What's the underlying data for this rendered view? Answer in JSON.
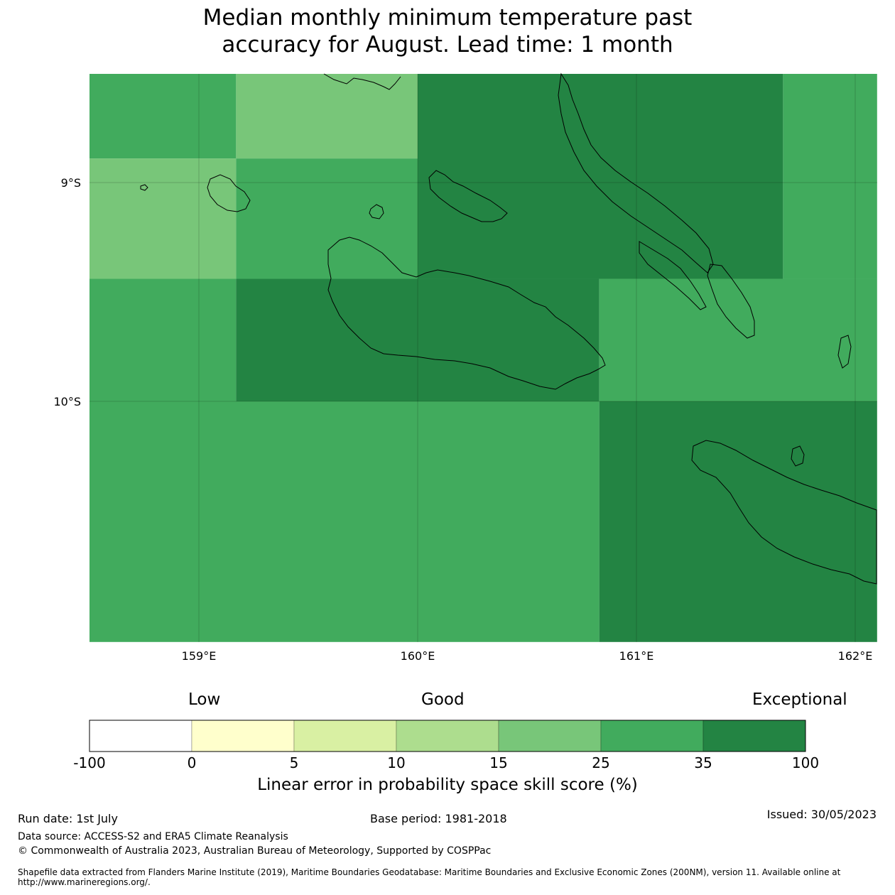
{
  "title_line1": "Median monthly minimum temperature past",
  "title_line2": "accuracy for August. Lead time: 1 month",
  "map": {
    "lon_range": [
      158.5,
      162.1
    ],
    "lat_range": [
      -8.5,
      -11.1
    ],
    "lat_ticks": [
      {
        "value": -9,
        "label": "9°S"
      },
      {
        "value": -10,
        "label": "10°S"
      }
    ],
    "lon_ticks": [
      {
        "value": 159,
        "label": "159°E"
      },
      {
        "value": 160,
        "label": "160°E"
      },
      {
        "value": 161,
        "label": "161°E"
      },
      {
        "value": 162,
        "label": "162°E"
      }
    ],
    "cells": [
      {
        "lon": [
          158.5,
          159.17
        ],
        "lat": [
          -8.5,
          -8.89
        ],
        "category": "25-35"
      },
      {
        "lon": [
          159.17,
          160.0
        ],
        "lat": [
          -8.5,
          -8.89
        ],
        "category": "15-25"
      },
      {
        "lon": [
          160.0,
          161.67
        ],
        "lat": [
          -8.5,
          -9.44
        ],
        "category": "35-100"
      },
      {
        "lon": [
          161.67,
          162.1
        ],
        "lat": [
          -8.5,
          -9.44
        ],
        "category": "25-35"
      },
      {
        "lon": [
          158.5,
          159.17
        ],
        "lat": [
          -8.89,
          -9.44
        ],
        "category": "15-25"
      },
      {
        "lon": [
          159.17,
          160.0
        ],
        "lat": [
          -8.89,
          -9.44
        ],
        "category": "25-35"
      },
      {
        "lon": [
          158.5,
          159.17
        ],
        "lat": [
          -9.44,
          -10.0
        ],
        "category": "25-35"
      },
      {
        "lon": [
          159.17,
          160.83
        ],
        "lat": [
          -9.44,
          -10.0
        ],
        "category": "35-100"
      },
      {
        "lon": [
          160.83,
          162.1
        ],
        "lat": [
          -9.44,
          -10.0
        ],
        "category": "25-35"
      },
      {
        "lon": [
          158.5,
          160.83
        ],
        "lat": [
          -10.0,
          -11.1
        ],
        "category": "25-35"
      },
      {
        "lon": [
          160.83,
          162.1
        ],
        "lat": [
          -10.0,
          -11.1
        ],
        "category": "35-100"
      }
    ]
  },
  "legend": {
    "top_labels": [
      "Low",
      "Good",
      "Exceptional"
    ],
    "bins": [
      {
        "from": "-100",
        "to": "0",
        "color": "#ffffff"
      },
      {
        "from": "0",
        "to": "5",
        "color": "#ffffcc"
      },
      {
        "from": "5",
        "to": "10",
        "color": "#d9f0a3"
      },
      {
        "from": "10",
        "to": "15",
        "color": "#addd8e"
      },
      {
        "from": "15",
        "to": "25",
        "color": "#78c679"
      },
      {
        "from": "25",
        "to": "35",
        "color": "#41ab5d"
      },
      {
        "from": "35",
        "to": "100",
        "color": "#238443"
      }
    ],
    "tick_labels": [
      "-100",
      "0",
      "5",
      "10",
      "15",
      "25",
      "35",
      "100"
    ],
    "axis_label": "Linear error in probability space skill score (%)"
  },
  "footer": {
    "run_date": "Run date: 1st July",
    "base_period": "Base period: 1981-2018",
    "issued": "Issued: 30/05/2023",
    "data_source": "Data source: ACCESS-S2 and ERA5 Climate Reanalysis",
    "copyright": "© Commonwealth of Australia 2023, Australian Bureau of Meteorology, Supported by COSPPac",
    "shapefile_line1": "Shapefile data extracted from Flanders Marine Institute (2019), Maritime Boundaries Geodatabase: Maritime Boundaries and Exclusive Economic Zones (200NM), version 11. Available online at",
    "shapefile_line2": "http://www.marineregions.org/."
  }
}
